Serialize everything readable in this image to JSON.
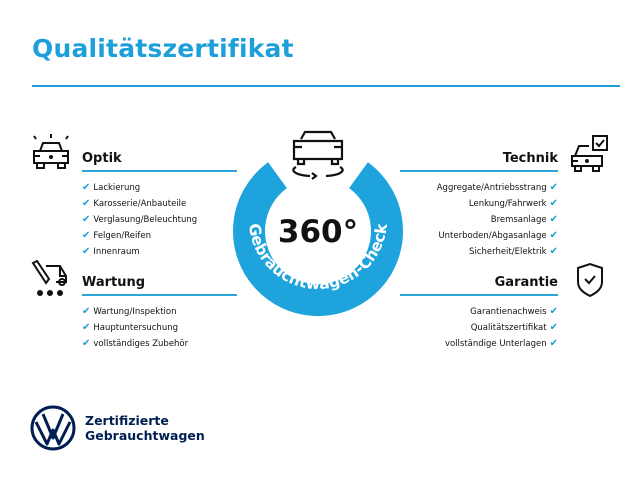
{
  "title": "Qualitätszertifikat",
  "colors": {
    "accent": "#1d9fd9",
    "ring": "#1fa3dc",
    "vw_navy": "#001e50"
  },
  "center": {
    "value": "360°",
    "ring_text": "Gebrauchtwagen-Check",
    "icon": "car-rotate-icon"
  },
  "sections": {
    "optik": {
      "heading": "Optik",
      "icon": "car-lights-icon",
      "items": [
        "Lackierung",
        "Karosserie/Anbauteile",
        "Verglasung/Beleuchtung",
        "Felgen/Reifen",
        "Innenraum"
      ]
    },
    "wartung": {
      "heading": "Wartung",
      "icon": "service-tools-icon",
      "items": [
        "Wartung/Inspektion",
        "Hauptuntersuchung",
        "vollständiges Zubehör"
      ]
    },
    "technik": {
      "heading": "Technik",
      "icon": "car-checkbox-icon",
      "items": [
        "Aggregate/Antriebsstrang",
        "Lenkung/Fahrwerk",
        "Bremsanlage",
        "Unterboden/Abgasanlage",
        "Sicherheit/Elektrik"
      ]
    },
    "garantie": {
      "heading": "Garantie",
      "icon": "shield-check-icon",
      "items": [
        "Garantienachweis",
        "Qualitätszertifikat",
        "vollständige Unterlagen"
      ]
    }
  },
  "check_glyph": "✔",
  "footer": {
    "line1": "Zertifizierte",
    "line2": "Gebrauchtwagen",
    "logo": "VW"
  }
}
